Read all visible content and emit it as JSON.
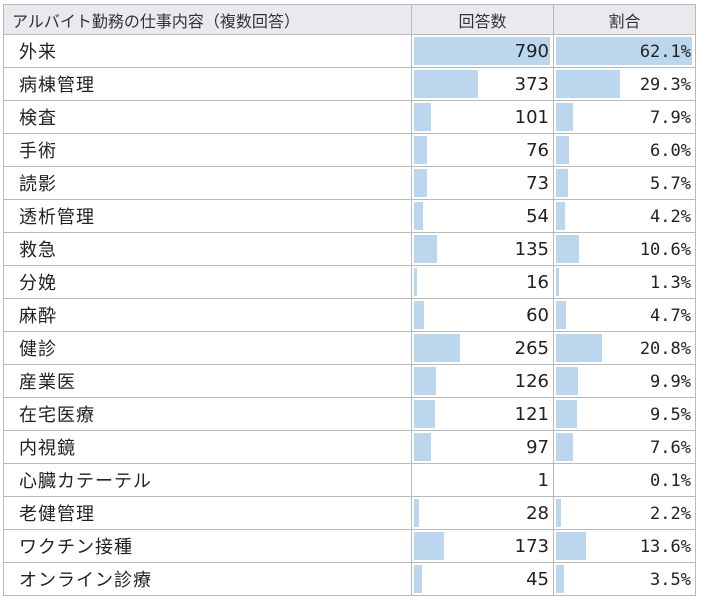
{
  "chart_data": {
    "type": "table",
    "headers": [
      "アルバイト勤務の仕事内容（複数回答）",
      "回答数",
      "割合"
    ],
    "rows": [
      {
        "task": "外来",
        "count": 790,
        "percent": "62.1%"
      },
      {
        "task": "病棟管理",
        "count": 373,
        "percent": "29.3%"
      },
      {
        "task": "検査",
        "count": 101,
        "percent": "7.9%"
      },
      {
        "task": "手術",
        "count": 76,
        "percent": "6.0%"
      },
      {
        "task": "読影",
        "count": 73,
        "percent": "5.7%"
      },
      {
        "task": "透析管理",
        "count": 54,
        "percent": "4.2%"
      },
      {
        "task": "救急",
        "count": 135,
        "percent": "10.6%"
      },
      {
        "task": "分娩",
        "count": 16,
        "percent": "1.3%"
      },
      {
        "task": "麻酔",
        "count": 60,
        "percent": "4.7%"
      },
      {
        "task": "健診",
        "count": 265,
        "percent": "20.8%"
      },
      {
        "task": "産業医",
        "count": 126,
        "percent": "9.9%"
      },
      {
        "task": "在宅医療",
        "count": 121,
        "percent": "9.5%"
      },
      {
        "task": "内視鏡",
        "count": 97,
        "percent": "7.6%"
      },
      {
        "task": "心臓カテーテル",
        "count": 1,
        "percent": "0.1%"
      },
      {
        "task": "老健管理",
        "count": 28,
        "percent": "2.2%"
      },
      {
        "task": "ワクチン接種",
        "count": 173,
        "percent": "13.6%"
      },
      {
        "task": "オンライン診療",
        "count": 45,
        "percent": "3.5%"
      }
    ],
    "colors": {
      "bar": "#bcd6ee",
      "header_bg": "#e8eaed",
      "grid": "#b9b9b9"
    }
  }
}
